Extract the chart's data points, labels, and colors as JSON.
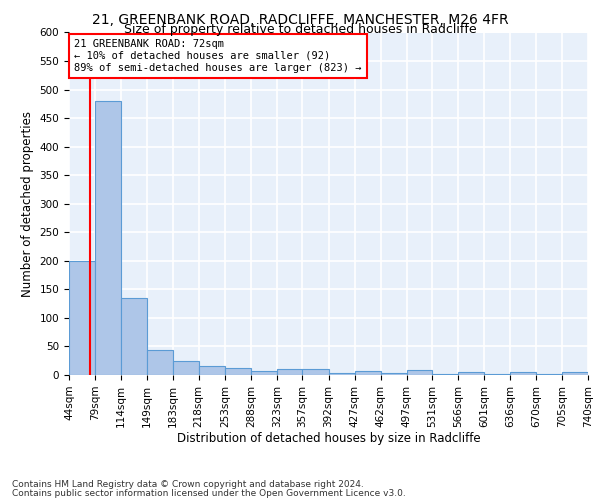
{
  "title1": "21, GREENBANK ROAD, RADCLIFFE, MANCHESTER, M26 4FR",
  "title2": "Size of property relative to detached houses in Radcliffe",
  "xlabel": "Distribution of detached houses by size in Radcliffe",
  "ylabel": "Number of detached properties",
  "footer1": "Contains HM Land Registry data © Crown copyright and database right 2024.",
  "footer2": "Contains public sector information licensed under the Open Government Licence v3.0.",
  "bin_edges": [
    44,
    79,
    114,
    149,
    183,
    218,
    253,
    288,
    323,
    357,
    392,
    427,
    462,
    497,
    531,
    566,
    601,
    636,
    670,
    705,
    740
  ],
  "bar_heights": [
    200,
    480,
    135,
    43,
    25,
    15,
    12,
    7,
    10,
    10,
    3,
    7,
    3,
    8,
    1,
    5,
    1,
    5,
    1,
    5
  ],
  "bar_color": "#aec6e8",
  "bar_edge_color": "#5b9bd5",
  "property_size": 72,
  "annotation_line1": "21 GREENBANK ROAD: 72sqm",
  "annotation_line2": "← 10% of detached houses are smaller (92)",
  "annotation_line3": "89% of semi-detached houses are larger (823) →",
  "annotation_box_color": "white",
  "annotation_box_edge": "red",
  "vline_color": "red",
  "ylim": [
    0,
    600
  ],
  "yticks": [
    0,
    50,
    100,
    150,
    200,
    250,
    300,
    350,
    400,
    450,
    500,
    550,
    600
  ],
  "bg_color": "#e8f0fa",
  "grid_color": "white",
  "title1_fontsize": 10,
  "title2_fontsize": 9,
  "xlabel_fontsize": 8.5,
  "ylabel_fontsize": 8.5,
  "tick_fontsize": 7.5,
  "footer_fontsize": 6.5
}
